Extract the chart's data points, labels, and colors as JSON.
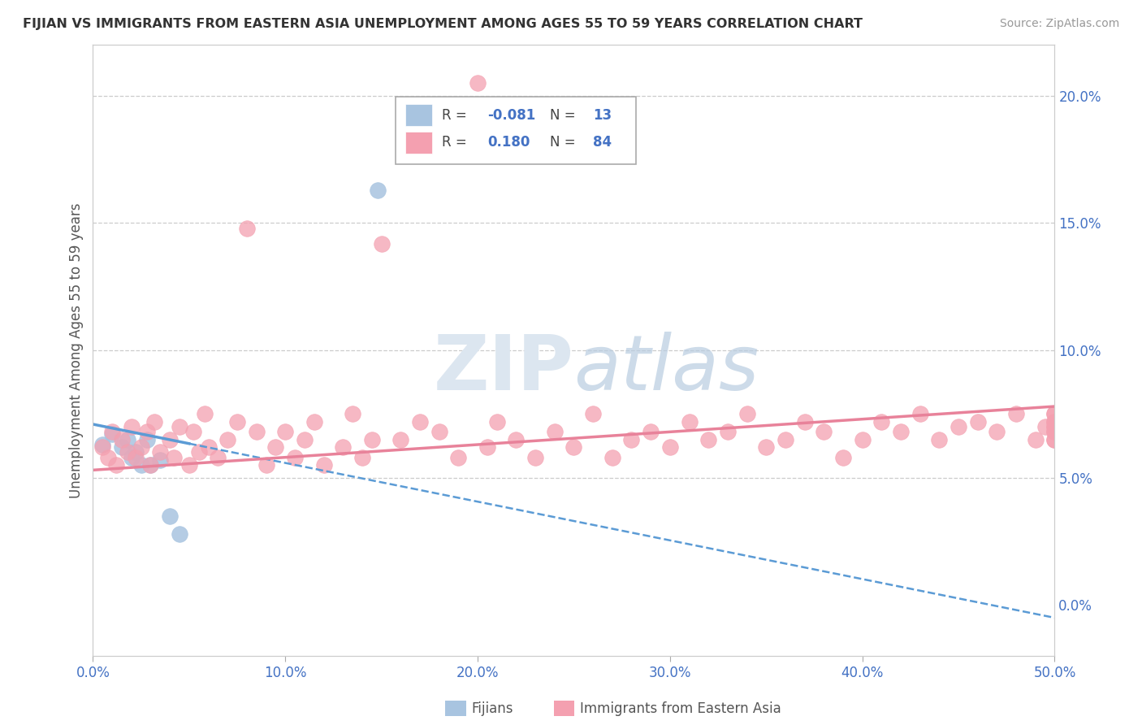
{
  "title": "FIJIAN VS IMMIGRANTS FROM EASTERN ASIA UNEMPLOYMENT AMONG AGES 55 TO 59 YEARS CORRELATION CHART",
  "source": "Source: ZipAtlas.com",
  "ylabel": "Unemployment Among Ages 55 to 59 years",
  "xlim": [
    0.0,
    0.5
  ],
  "ylim": [
    -0.02,
    0.22
  ],
  "fijian_color": "#a8c4e0",
  "eastern_asia_color": "#f4a0b0",
  "line_fijian_color": "#5b9bd5",
  "line_ea_color": "#e8829a",
  "watermark_color": "#dce6f0",
  "background_color": "#ffffff",
  "grid_color": "#cccccc",
  "fijian_x": [
    0.005,
    0.01,
    0.015,
    0.018,
    0.02,
    0.022,
    0.025,
    0.028,
    0.03,
    0.035,
    0.04,
    0.045,
    0.148
  ],
  "fijian_y": [
    0.063,
    0.067,
    0.062,
    0.065,
    0.058,
    0.06,
    0.055,
    0.065,
    0.055,
    0.057,
    0.035,
    0.028,
    0.163
  ],
  "eastern_asia_x": [
    0.005,
    0.008,
    0.01,
    0.012,
    0.015,
    0.018,
    0.02,
    0.022,
    0.025,
    0.028,
    0.03,
    0.032,
    0.035,
    0.04,
    0.042,
    0.045,
    0.05,
    0.052,
    0.055,
    0.058,
    0.06,
    0.065,
    0.07,
    0.075,
    0.08,
    0.085,
    0.09,
    0.095,
    0.1,
    0.105,
    0.11,
    0.115,
    0.12,
    0.13,
    0.135,
    0.14,
    0.145,
    0.15,
    0.16,
    0.17,
    0.18,
    0.19,
    0.2,
    0.205,
    0.21,
    0.22,
    0.23,
    0.24,
    0.25,
    0.26,
    0.27,
    0.28,
    0.29,
    0.3,
    0.31,
    0.32,
    0.33,
    0.34,
    0.35,
    0.36,
    0.37,
    0.38,
    0.39,
    0.4,
    0.41,
    0.42,
    0.43,
    0.44,
    0.45,
    0.46,
    0.47,
    0.48,
    0.49,
    0.495,
    0.5,
    0.5,
    0.5,
    0.5,
    0.5,
    0.5,
    0.5,
    0.5,
    0.5,
    0.5
  ],
  "eastern_asia_y": [
    0.062,
    0.058,
    0.068,
    0.055,
    0.065,
    0.06,
    0.07,
    0.058,
    0.062,
    0.068,
    0.055,
    0.072,
    0.06,
    0.065,
    0.058,
    0.07,
    0.055,
    0.068,
    0.06,
    0.075,
    0.062,
    0.058,
    0.065,
    0.072,
    0.148,
    0.068,
    0.055,
    0.062,
    0.068,
    0.058,
    0.065,
    0.072,
    0.055,
    0.062,
    0.075,
    0.058,
    0.065,
    0.142,
    0.065,
    0.072,
    0.068,
    0.058,
    0.205,
    0.062,
    0.072,
    0.065,
    0.058,
    0.068,
    0.062,
    0.075,
    0.058,
    0.065,
    0.068,
    0.062,
    0.072,
    0.065,
    0.068,
    0.075,
    0.062,
    0.065,
    0.072,
    0.068,
    0.058,
    0.065,
    0.072,
    0.068,
    0.075,
    0.065,
    0.07,
    0.072,
    0.068,
    0.075,
    0.065,
    0.07,
    0.072,
    0.068,
    0.075,
    0.065,
    0.07,
    0.072,
    0.068,
    0.075,
    0.065,
    0.07
  ]
}
